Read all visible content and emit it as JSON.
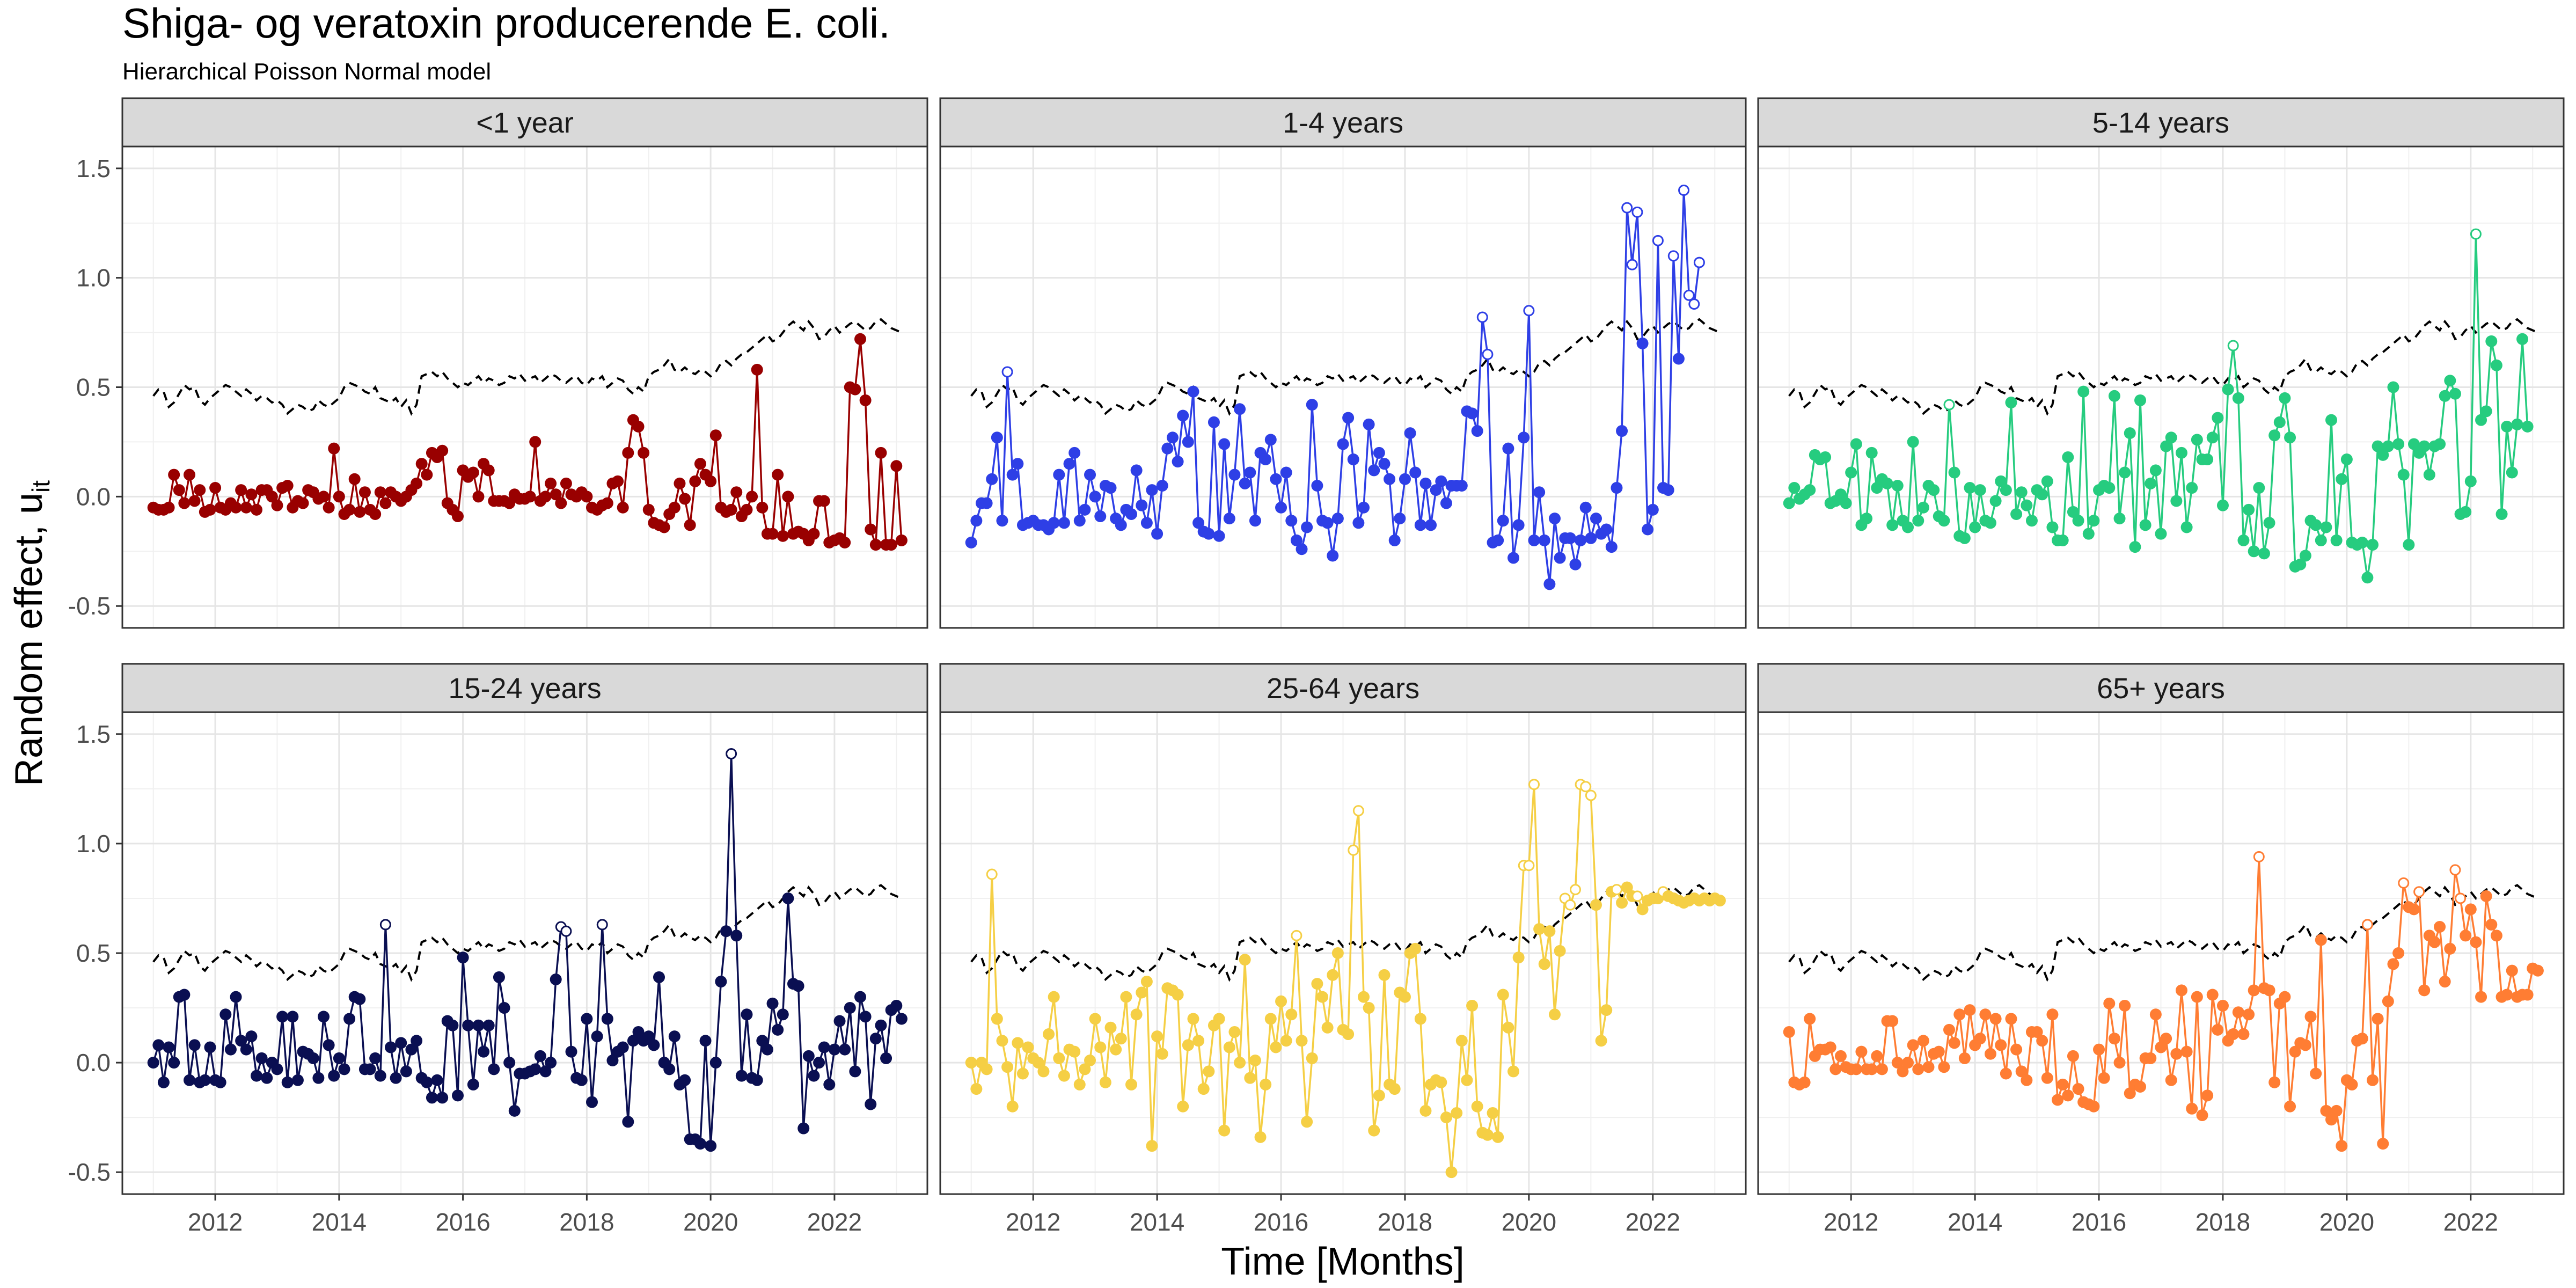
{
  "chart_data": {
    "type": "line",
    "title": "Shiga- og veratoxin producerende E. coli.",
    "subtitle": "Hierarchical Poisson Normal model",
    "xlabel": "Time [Months]",
    "ylabel_main": "Random effect, u",
    "ylabel_sub": "it",
    "xlim": [
      2010.5,
      2023.5
    ],
    "ylim": [
      -0.6,
      1.6
    ],
    "x_ticks": [
      2012,
      2014,
      2016,
      2018,
      2020,
      2022
    ],
    "y_ticks": [
      -0.5,
      0,
      0.5,
      1,
      1.5
    ],
    "y_tick_labels": [
      "-0.5",
      "0.0",
      "0.5",
      "1.0",
      "1.5"
    ],
    "x_tick_labels": [
      "2012",
      "2014",
      "2016",
      "2018",
      "2020",
      "2022"
    ],
    "grid": true,
    "legend": "none",
    "facets": [
      "<1 year",
      "1-4 years",
      "5-14 years",
      "15-24 years",
      "25-64 years",
      "65+ years"
    ],
    "colors": [
      "#990000",
      "#2E3FE6",
      "#26CC7F",
      "#0A0F52",
      "#F5CF45",
      "#FF7D33"
    ],
    "threshold_style": "black dashed",
    "open_marker_meaning": "values above threshold",
    "x_start": 2011.0,
    "x_step_months": 1,
    "threshold": [
      0.46,
      0.49,
      0.48,
      0.41,
      0.43,
      0.47,
      0.51,
      0.49,
      0.5,
      0.44,
      0.42,
      0.45,
      0.47,
      0.49,
      0.51,
      0.5,
      0.48,
      0.46,
      0.49,
      0.47,
      0.44,
      0.46,
      0.45,
      0.43,
      0.44,
      0.42,
      0.38,
      0.4,
      0.42,
      0.41,
      0.39,
      0.4,
      0.44,
      0.42,
      0.41,
      0.43,
      0.45,
      0.5,
      0.52,
      0.51,
      0.5,
      0.48,
      0.47,
      0.5,
      0.45,
      0.44,
      0.43,
      0.45,
      0.41,
      0.44,
      0.38,
      0.42,
      0.55,
      0.56,
      0.57,
      0.55,
      0.57,
      0.54,
      0.52,
      0.5,
      0.52,
      0.51,
      0.53,
      0.55,
      0.52,
      0.54,
      0.53,
      0.51,
      0.52,
      0.55,
      0.54,
      0.56,
      0.53,
      0.54,
      0.55,
      0.52,
      0.54,
      0.56,
      0.55,
      0.53,
      0.52,
      0.54,
      0.55,
      0.52,
      0.51,
      0.54,
      0.53,
      0.55,
      0.5,
      0.52,
      0.54,
      0.53,
      0.49,
      0.47,
      0.5,
      0.48,
      0.55,
      0.57,
      0.58,
      0.6,
      0.63,
      0.58,
      0.57,
      0.59,
      0.57,
      0.56,
      0.58,
      0.57,
      0.55,
      0.57,
      0.61,
      0.62,
      0.6,
      0.63,
      0.65,
      0.66,
      0.68,
      0.7,
      0.72,
      0.74,
      0.71,
      0.72,
      0.75,
      0.78,
      0.8,
      0.78,
      0.76,
      0.8,
      0.77,
      0.72,
      0.73,
      0.76,
      0.78,
      0.75,
      0.77,
      0.79,
      0.8,
      0.78,
      0.76,
      0.77,
      0.8,
      0.81,
      0.79,
      0.77,
      0.76,
      0.75
    ],
    "series": [
      {
        "values": [
          -0.05,
          -0.06,
          -0.06,
          -0.05,
          0.1,
          0.03,
          -0.03,
          0.1,
          -0.02,
          0.03,
          -0.07,
          -0.06,
          0.04,
          -0.05,
          -0.06,
          -0.03,
          -0.05,
          0.03,
          -0.05,
          0.01,
          -0.06,
          0.03,
          0.03,
          0.0,
          -0.04,
          0.04,
          0.05,
          -0.05,
          -0.02,
          -0.03,
          0.03,
          0.02,
          -0.01,
          0.0,
          -0.05,
          0.22,
          0.0,
          -0.08,
          -0.06,
          0.08,
          -0.07,
          0.02,
          -0.06,
          -0.08,
          0.02,
          -0.03,
          0.02,
          0.0,
          -0.02,
          0.0,
          0.03,
          0.06,
          0.15,
          0.1,
          0.2,
          0.18,
          0.21,
          -0.03,
          -0.06,
          -0.09,
          0.12,
          0.09,
          0.11,
          0.0,
          0.15,
          0.12,
          -0.02,
          -0.02,
          -0.02,
          -0.03,
          0.01,
          -0.01,
          -0.01,
          0.0,
          0.25,
          -0.02,
          0.0,
          0.06,
          0.01,
          -0.03,
          0.06,
          0.01,
          0.0,
          0.02,
          0.0,
          -0.05,
          -0.06,
          -0.04,
          -0.03,
          0.06,
          0.07,
          -0.05,
          0.2,
          0.35,
          0.32,
          0.2,
          -0.06,
          -0.12,
          -0.13,
          -0.14,
          -0.08,
          -0.05,
          0.06,
          -0.01,
          -0.13,
          0.07,
          0.15,
          0.1,
          0.07,
          0.28,
          -0.05,
          -0.07,
          -0.06,
          0.02,
          -0.09,
          -0.06,
          0.0,
          0.58,
          -0.05,
          -0.17,
          -0.17,
          0.1,
          -0.18,
          0.0,
          -0.17,
          -0.16,
          -0.17,
          -0.2,
          -0.17,
          -0.02,
          -0.02,
          -0.21,
          -0.2,
          -0.19,
          -0.21,
          0.5,
          0.49,
          0.72,
          0.44,
          -0.15,
          -0.22,
          0.2,
          -0.22,
          -0.22,
          0.14,
          -0.2
        ],
        "open": []
      },
      {
        "values": [
          -0.21,
          -0.11,
          -0.03,
          -0.03,
          0.08,
          0.27,
          -0.11,
          0.57,
          0.1,
          0.15,
          -0.13,
          -0.12,
          -0.11,
          -0.13,
          -0.13,
          -0.15,
          -0.12,
          0.1,
          -0.12,
          0.15,
          0.2,
          -0.11,
          -0.06,
          0.1,
          0.0,
          -0.09,
          0.05,
          0.04,
          -0.1,
          -0.13,
          -0.06,
          -0.08,
          0.12,
          -0.04,
          -0.12,
          0.03,
          -0.17,
          0.05,
          0.22,
          0.27,
          0.16,
          0.37,
          0.25,
          0.48,
          -0.12,
          -0.16,
          -0.17,
          0.34,
          -0.18,
          0.24,
          -0.1,
          0.1,
          0.4,
          0.06,
          0.11,
          -0.11,
          0.2,
          0.17,
          0.26,
          0.08,
          -0.05,
          0.11,
          -0.11,
          -0.2,
          -0.24,
          -0.14,
          0.42,
          0.05,
          -0.11,
          -0.12,
          -0.27,
          -0.1,
          0.24,
          0.36,
          0.17,
          -0.12,
          -0.05,
          0.33,
          0.12,
          0.2,
          0.15,
          0.08,
          -0.2,
          -0.1,
          0.08,
          0.29,
          0.11,
          -0.13,
          0.06,
          -0.13,
          0.03,
          0.07,
          -0.03,
          0.05,
          0.05,
          0.05,
          0.39,
          0.38,
          0.3,
          0.82,
          0.65,
          -0.21,
          -0.2,
          -0.11,
          0.22,
          -0.28,
          -0.13,
          0.27,
          0.85,
          -0.2,
          0.02,
          -0.2,
          -0.4,
          -0.1,
          -0.28,
          -0.19,
          -0.19,
          -0.31,
          -0.2,
          -0.05,
          -0.19,
          -0.1,
          -0.17,
          -0.15,
          -0.23,
          0.04,
          0.3,
          1.32,
          1.06,
          1.3,
          0.7,
          -0.15,
          -0.06,
          1.17,
          0.04,
          0.03,
          1.1,
          0.63,
          1.4,
          0.92,
          0.88,
          1.07
        ],
        "open": []
      },
      {
        "values": [
          -0.03,
          0.04,
          -0.01,
          0.01,
          0.03,
          0.19,
          0.17,
          0.18,
          -0.03,
          -0.02,
          0.01,
          -0.03,
          0.11,
          0.24,
          -0.13,
          -0.1,
          0.2,
          0.04,
          0.08,
          0.06,
          -0.13,
          0.05,
          -0.11,
          -0.14,
          0.25,
          -0.11,
          -0.05,
          0.05,
          0.03,
          -0.09,
          -0.11,
          0.42,
          0.11,
          -0.18,
          -0.19,
          0.04,
          -0.14,
          0.03,
          -0.11,
          -0.12,
          -0.02,
          0.07,
          0.03,
          0.43,
          -0.08,
          0.02,
          -0.04,
          -0.11,
          0.03,
          0.01,
          0.07,
          -0.14,
          -0.2,
          -0.2,
          0.18,
          -0.07,
          -0.11,
          0.48,
          -0.17,
          -0.11,
          0.03,
          0.05,
          0.04,
          0.46,
          -0.1,
          0.11,
          0.29,
          -0.23,
          0.44,
          -0.13,
          0.06,
          0.12,
          -0.17,
          0.23,
          0.27,
          -0.02,
          0.2,
          -0.14,
          0.04,
          0.26,
          0.17,
          0.17,
          0.27,
          0.36,
          -0.04,
          0.49,
          0.69,
          0.45,
          -0.2,
          -0.06,
          -0.25,
          0.04,
          -0.26,
          -0.12,
          0.28,
          0.34,
          0.45,
          0.27,
          -0.32,
          -0.31,
          -0.27,
          -0.11,
          -0.13,
          -0.2,
          -0.14,
          0.35,
          -0.2,
          0.08,
          0.17,
          -0.21,
          -0.22,
          -0.21,
          -0.37,
          -0.22,
          0.23,
          0.19,
          0.23,
          0.5,
          0.24,
          0.1,
          -0.22,
          0.24,
          0.2,
          0.23,
          0.1,
          0.23,
          0.24,
          0.46,
          0.53,
          0.47,
          -0.08,
          -0.07,
          0.07,
          1.2,
          0.35,
          0.39,
          0.71,
          0.6,
          -0.08,
          0.32,
          0.11,
          0.33,
          0.72,
          0.32
        ],
        "open": []
      },
      {
        "values": [
          0.0,
          0.08,
          -0.09,
          0.07,
          0.0,
          0.3,
          0.31,
          -0.08,
          0.08,
          -0.09,
          -0.08,
          0.07,
          -0.08,
          -0.09,
          0.22,
          0.06,
          0.3,
          0.1,
          0.06,
          0.12,
          -0.06,
          0.02,
          -0.07,
          0.0,
          -0.03,
          0.21,
          -0.09,
          0.21,
          -0.08,
          0.05,
          0.04,
          0.02,
          -0.07,
          0.21,
          0.08,
          -0.06,
          0.02,
          -0.03,
          0.2,
          0.3,
          0.29,
          -0.03,
          -0.03,
          0.02,
          -0.06,
          0.63,
          0.07,
          -0.07,
          0.09,
          -0.04,
          0.06,
          0.1,
          -0.07,
          -0.09,
          -0.16,
          -0.08,
          -0.16,
          0.19,
          0.17,
          -0.15,
          0.48,
          0.17,
          -0.1,
          0.17,
          0.05,
          0.17,
          -0.03,
          0.39,
          0.25,
          0.0,
          -0.22,
          -0.05,
          -0.05,
          -0.04,
          -0.03,
          0.03,
          -0.04,
          0.0,
          0.38,
          0.62,
          0.6,
          0.05,
          -0.07,
          -0.08,
          0.2,
          -0.18,
          0.12,
          0.63,
          0.2,
          0.01,
          0.05,
          0.07,
          -0.27,
          0.1,
          0.14,
          0.1,
          0.12,
          0.08,
          0.39,
          0.0,
          -0.03,
          0.12,
          -0.1,
          -0.08,
          -0.35,
          -0.35,
          -0.37,
          0.1,
          -0.38,
          0.0,
          0.37,
          0.6,
          1.41,
          0.58,
          -0.06,
          0.22,
          -0.07,
          -0.08,
          0.1,
          0.06,
          0.27,
          0.15,
          0.22,
          0.75,
          0.36,
          0.35,
          -0.3,
          0.03,
          -0.06,
          0.0,
          0.07,
          -0.1,
          0.06,
          0.19,
          0.06,
          0.25,
          -0.04,
          0.3,
          0.21,
          -0.19,
          0.11,
          0.17,
          0.02,
          0.24,
          0.26,
          0.2
        ],
        "open": []
      },
      {
        "values": [
          0.0,
          -0.12,
          0.0,
          -0.03,
          0.86,
          0.2,
          0.1,
          -0.02,
          -0.2,
          0.09,
          -0.05,
          0.07,
          0.02,
          0.0,
          -0.04,
          0.13,
          0.3,
          0.02,
          -0.06,
          0.06,
          0.05,
          -0.1,
          -0.03,
          0.01,
          0.2,
          0.07,
          -0.09,
          0.16,
          0.06,
          0.11,
          0.3,
          -0.1,
          0.22,
          0.32,
          0.37,
          -0.38,
          0.12,
          0.04,
          0.34,
          0.33,
          0.31,
          -0.2,
          0.08,
          0.2,
          0.1,
          -0.12,
          -0.04,
          0.17,
          0.2,
          -0.31,
          0.07,
          0.14,
          0.0,
          0.47,
          -0.07,
          0.01,
          -0.34,
          -0.1,
          0.2,
          0.07,
          0.28,
          0.1,
          0.22,
          0.58,
          0.1,
          -0.27,
          0.02,
          0.36,
          0.3,
          0.16,
          0.4,
          0.5,
          0.15,
          0.13,
          0.97,
          1.15,
          0.3,
          0.25,
          -0.31,
          -0.15,
          0.4,
          -0.1,
          -0.12,
          0.32,
          0.3,
          0.5,
          0.52,
          0.2,
          -0.22,
          -0.1,
          -0.08,
          -0.09,
          -0.25,
          -0.5,
          -0.23,
          0.1,
          -0.08,
          0.26,
          -0.2,
          -0.32,
          -0.33,
          -0.23,
          -0.34,
          0.31,
          0.16,
          -0.04,
          0.48,
          0.9,
          0.9,
          1.27,
          0.61,
          0.45,
          0.6,
          0.22,
          0.51,
          0.75,
          0.72,
          0.79,
          1.27,
          1.26,
          1.22,
          0.72,
          0.1,
          0.24,
          0.78,
          0.79,
          0.73,
          0.8,
          0.76,
          0.76,
          0.7,
          0.74,
          0.75,
          0.75,
          0.78,
          0.76,
          0.75,
          0.74,
          0.73,
          0.74,
          0.75,
          0.74,
          0.75,
          0.74,
          0.75,
          0.74
        ],
        "open": []
      },
      {
        "values": [
          0.14,
          -0.09,
          -0.1,
          -0.09,
          0.2,
          0.03,
          0.06,
          0.06,
          0.07,
          -0.03,
          0.03,
          -0.02,
          -0.03,
          -0.03,
          0.05,
          -0.03,
          -0.03,
          0.03,
          -0.03,
          0.19,
          0.19,
          0.0,
          -0.04,
          0.0,
          0.08,
          -0.03,
          0.1,
          -0.02,
          0.04,
          0.05,
          -0.02,
          0.15,
          0.09,
          0.22,
          0.02,
          0.24,
          0.08,
          0.11,
          0.22,
          0.04,
          0.2,
          0.08,
          -0.05,
          0.2,
          0.06,
          -0.04,
          -0.08,
          0.14,
          0.14,
          0.1,
          -0.07,
          0.22,
          -0.17,
          -0.1,
          -0.15,
          0.03,
          -0.12,
          -0.18,
          -0.19,
          -0.2,
          0.06,
          -0.07,
          0.27,
          0.11,
          0.0,
          0.26,
          -0.14,
          -0.1,
          -0.11,
          0.02,
          0.02,
          0.22,
          0.07,
          0.11,
          -0.08,
          0.04,
          0.33,
          0.05,
          -0.21,
          0.3,
          -0.24,
          -0.15,
          0.31,
          0.15,
          0.26,
          0.1,
          0.13,
          0.23,
          0.13,
          0.22,
          0.33,
          0.94,
          0.34,
          0.33,
          -0.09,
          0.27,
          0.3,
          -0.2,
          0.05,
          0.09,
          0.08,
          0.21,
          -0.05,
          0.56,
          -0.22,
          -0.26,
          -0.22,
          -0.38,
          -0.08,
          -0.1,
          0.1,
          0.11,
          0.63,
          -0.08,
          0.2,
          -0.37,
          0.28,
          0.45,
          0.5,
          0.82,
          0.71,
          0.7,
          0.78,
          0.33,
          0.58,
          0.55,
          0.62,
          0.37,
          0.52,
          0.88,
          0.75,
          0.58,
          0.7,
          0.55,
          0.3,
          0.76,
          0.63,
          0.58,
          0.3,
          0.31,
          0.42,
          0.3,
          0.31,
          0.31,
          0.43,
          0.42
        ],
        "open": []
      }
    ]
  }
}
